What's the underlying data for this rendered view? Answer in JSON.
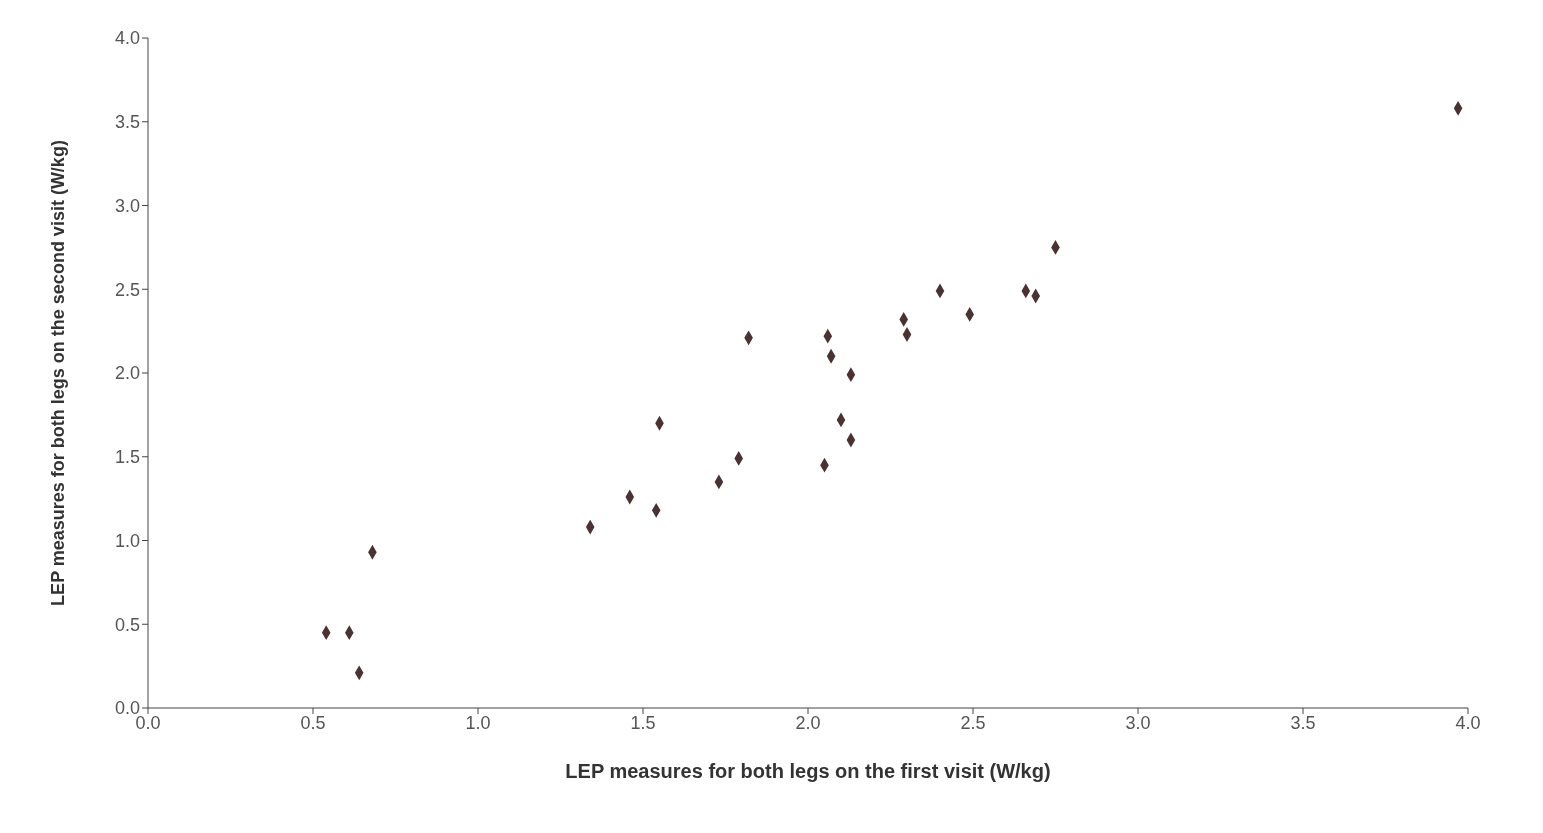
{
  "chart_data": {
    "type": "scatter",
    "xlabel": "LEP measures for both legs on the first visit (W/kg)",
    "ylabel": "LEP measures for both legs on the second visit (W/kg)",
    "x": [
      3.97,
      2.75,
      2.66,
      2.69,
      2.49,
      2.4,
      2.29,
      2.3,
      2.06,
      2.07,
      2.13,
      2.1,
      2.13,
      2.05,
      1.82,
      1.79,
      1.73,
      1.55,
      1.54,
      1.46,
      1.34,
      0.68,
      0.54,
      0.61,
      0.64
    ],
    "series": [
      {
        "color": "#4a3232",
        "values": [
          3.58,
          2.75,
          2.49,
          2.46,
          2.35,
          2.49,
          2.32,
          2.23,
          2.22,
          2.1,
          1.99,
          1.72,
          1.6,
          1.45,
          2.21,
          1.49,
          1.35,
          1.7,
          1.18,
          1.26,
          1.08,
          0.93,
          0.45,
          0.45,
          0.21
        ]
      }
    ],
    "xlim": [
      0,
      4
    ],
    "ylim": [
      0,
      4
    ],
    "xticks": [
      {
        "value": 0,
        "label": "0.0"
      },
      0.5,
      {
        "value": 1,
        "label": "1.0"
      },
      1.5,
      {
        "value": 2,
        "label": "2.0"
      },
      2.5,
      {
        "value": 3,
        "label": "3.0"
      },
      3.5,
      {
        "value": 4,
        "label": "4.0"
      }
    ],
    "yticks": [
      {
        "value": 0,
        "label": "0.0"
      },
      0.5,
      {
        "value": 1,
        "label": "1.0"
      },
      1.5,
      {
        "value": 2,
        "label": "2.0"
      },
      2.5,
      {
        "value": 3,
        "label": "3.0"
      },
      3.5,
      {
        "value": 4,
        "label": "4.0"
      }
    ],
    "marker": "diamond",
    "grid": false,
    "legend": false
  }
}
